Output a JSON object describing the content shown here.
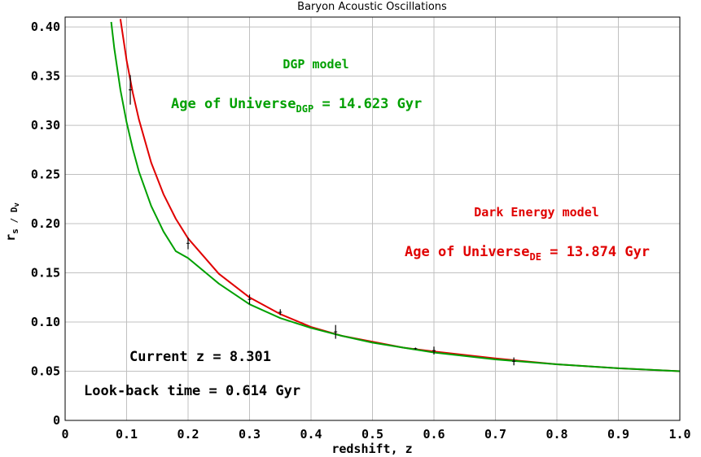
{
  "chart_data": {
    "type": "line",
    "title": "Baryon Acoustic Oscillations",
    "xlabel": "redshift, z",
    "ylabel": "r_s / D_v",
    "xlim": [
      0,
      1.0
    ],
    "ylim": [
      0,
      0.41
    ],
    "grid": true,
    "x_ticks": [
      "0",
      "0.1",
      "0.2",
      "0.3",
      "0.4",
      "0.5",
      "0.6",
      "0.7",
      "0.8",
      "0.9",
      "1.0"
    ],
    "y_ticks": [
      "0",
      "0.05",
      "0.10",
      "0.15",
      "0.20",
      "0.25",
      "0.30",
      "0.35",
      "0.40"
    ],
    "series": [
      {
        "color": "#e00000",
        "x": [
          0.09,
          0.1,
          0.11,
          0.12,
          0.14,
          0.16,
          0.18,
          0.2,
          0.25,
          0.3,
          0.35,
          0.4,
          0.45,
          0.5,
          0.55,
          0.6,
          0.7,
          0.8,
          0.9,
          1.0
        ],
        "y": [
          0.408,
          0.366,
          0.333,
          0.306,
          0.262,
          0.23,
          0.205,
          0.185,
          0.149,
          0.125,
          0.108,
          0.095,
          0.086,
          0.08,
          0.074,
          0.07,
          0.063,
          0.057,
          0.053,
          0.05
        ]
      },
      {
        "color": "#00a000",
        "x": [
          0.075,
          0.08,
          0.09,
          0.1,
          0.11,
          0.12,
          0.14,
          0.16,
          0.18,
          0.2,
          0.25,
          0.3,
          0.35,
          0.4,
          0.45,
          0.5,
          0.55,
          0.6,
          0.7,
          0.8,
          0.9,
          1.0
        ],
        "y": [
          0.405,
          0.378,
          0.336,
          0.303,
          0.276,
          0.253,
          0.218,
          0.192,
          0.172,
          0.165,
          0.139,
          0.118,
          0.104,
          0.094,
          0.086,
          0.079,
          0.074,
          0.069,
          0.062,
          0.057,
          0.053,
          0.05
        ]
      }
    ],
    "error_bars": [
      {
        "x": 0.106,
        "y": 0.336,
        "low": 0.321,
        "high": 0.351
      },
      {
        "x": 0.2,
        "y": 0.18,
        "low": 0.174,
        "high": 0.186
      },
      {
        "x": 0.3,
        "y": 0.123,
        "low": 0.118,
        "high": 0.128
      },
      {
        "x": 0.35,
        "y": 0.11,
        "low": 0.107,
        "high": 0.113
      },
      {
        "x": 0.44,
        "y": 0.09,
        "low": 0.083,
        "high": 0.097
      },
      {
        "x": 0.57,
        "y": 0.073,
        "low": 0.072,
        "high": 0.074
      },
      {
        "x": 0.6,
        "y": 0.071,
        "low": 0.067,
        "high": 0.075
      },
      {
        "x": 0.73,
        "y": 0.06,
        "low": 0.056,
        "high": 0.064
      }
    ],
    "annotations": {
      "dgp_model": "DGP model",
      "dgp_age_prefix": "Age of Universe",
      "dgp_age_sub": "DGP",
      "dgp_age_value": " = 14.623 Gyr",
      "de_model": "Dark Energy model",
      "de_age_prefix": "Age of Universe",
      "de_age_sub": "DE",
      "de_age_value": " = 13.874 Gyr",
      "current_z": "Current z = 8.301",
      "lookback": "Look-back time = 0.614 Gyr"
    },
    "colors": {
      "green": "#00a000",
      "red": "#e00000",
      "grid": "#c0c0c0"
    }
  }
}
